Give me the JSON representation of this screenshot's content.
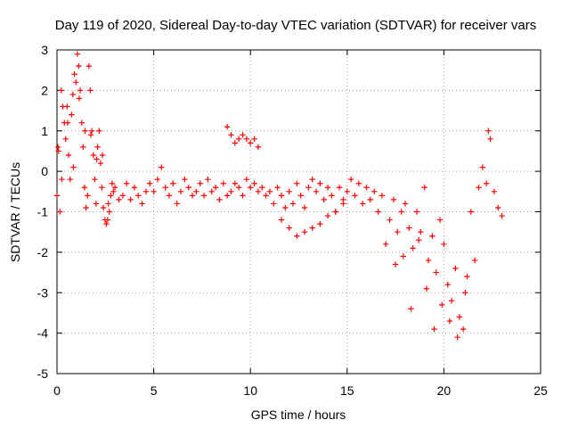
{
  "chart_data": {
    "type": "scatter",
    "title": "Day 119 of 2020, Sidereal Day-to-day VTEC variation (SDTVAR) for receiver vars",
    "xlabel": "GPS time / hours",
    "ylabel": "SDTVAR / TECUs",
    "xlim": [
      0,
      25
    ],
    "ylim": [
      -5,
      3
    ],
    "xticks": [
      0,
      5,
      10,
      15,
      20,
      25
    ],
    "yticks": [
      -5,
      -4,
      -3,
      -2,
      -1,
      0,
      1,
      2,
      3
    ],
    "grid": true,
    "marker": "+",
    "color": "#ff0000",
    "series": [
      {
        "name": "vars",
        "x": [
          0.0,
          0.08,
          0.15,
          0.22,
          0.3,
          0.38,
          0.45,
          0.52,
          0.6,
          0.68,
          0.75,
          0.82,
          0.9,
          0.98,
          1.05,
          1.12,
          1.2,
          1.28,
          1.35,
          1.42,
          1.5,
          1.58,
          1.65,
          1.72,
          1.8,
          1.88,
          1.95,
          2.02,
          2.1,
          2.18,
          2.25,
          2.32,
          2.4,
          2.48,
          2.55,
          2.62,
          2.7,
          2.78,
          2.85,
          2.92,
          3.0,
          3.2,
          3.4,
          3.6,
          3.8,
          4.0,
          4.2,
          4.4,
          4.6,
          4.8,
          5.0,
          5.2,
          5.4,
          5.6,
          5.8,
          6.0,
          6.2,
          6.4,
          6.6,
          6.8,
          7.0,
          7.2,
          7.4,
          7.6,
          7.8,
          8.0,
          8.2,
          8.4,
          8.6,
          8.8,
          9.0,
          9.2,
          9.4,
          9.6,
          9.8,
          10.0,
          10.2,
          10.4,
          10.6,
          10.8,
          11.0,
          11.2,
          11.4,
          11.6,
          11.8,
          12.0,
          12.2,
          12.4,
          12.6,
          12.8,
          13.0,
          13.2,
          13.4,
          13.6,
          13.8,
          14.0,
          14.2,
          14.4,
          14.6,
          14.8,
          15.0,
          15.2,
          15.4,
          15.6,
          15.8,
          16.0,
          16.2,
          16.4,
          16.6,
          16.8,
          17.0,
          17.2,
          17.4,
          17.6,
          17.8,
          18.0,
          18.2,
          18.4,
          18.6,
          18.8,
          19.0,
          19.2,
          19.4,
          19.6,
          19.8,
          20.0,
          20.2,
          20.4,
          20.6,
          20.8,
          21.0,
          21.2,
          21.4,
          21.6,
          21.8,
          22.0,
          22.2,
          22.4,
          22.6,
          22.8,
          23.0,
          0.05,
          0.25,
          0.55,
          0.85,
          1.15,
          1.45,
          1.75,
          2.05,
          2.35,
          2.65,
          8.8,
          9.0,
          9.2,
          9.4,
          9.6,
          9.8,
          10.0,
          10.2,
          10.4,
          11.6,
          12.0,
          12.4,
          12.8,
          13.2,
          13.6,
          14.0,
          14.4,
          14.8,
          17.5,
          17.9,
          18.3,
          18.7,
          19.1,
          19.5,
          19.9,
          20.3,
          20.7,
          21.1,
          22.3
        ],
        "y": [
          -0.6,
          0.5,
          -1.0,
          2.0,
          1.6,
          1.2,
          0.8,
          1.6,
          0.4,
          -0.2,
          1.4,
          1.9,
          2.4,
          2.2,
          2.9,
          2.6,
          2.0,
          1.2,
          0.6,
          -0.4,
          -0.9,
          -0.6,
          2.6,
          2.0,
          1.0,
          0.4,
          -0.2,
          -0.8,
          0.6,
          1.0,
          0.2,
          -0.4,
          -0.9,
          -1.2,
          -1.3,
          -1.2,
          -1.0,
          -0.6,
          -0.3,
          -0.5,
          -0.4,
          -0.7,
          -0.6,
          -0.3,
          -0.7,
          -0.4,
          -0.6,
          -0.8,
          -0.5,
          -0.3,
          -0.5,
          -0.2,
          0.1,
          -0.4,
          -0.6,
          -0.3,
          -0.8,
          -0.5,
          -0.2,
          -0.4,
          -0.6,
          -0.5,
          -0.3,
          -0.6,
          -0.2,
          -0.5,
          -0.4,
          -0.7,
          -0.3,
          -0.6,
          -0.5,
          -0.3,
          -0.4,
          -0.6,
          -0.2,
          -0.4,
          -0.3,
          -0.5,
          -0.4,
          -0.6,
          -0.5,
          -0.8,
          -0.4,
          -0.6,
          -0.9,
          -0.5,
          -0.8,
          -0.3,
          -0.6,
          -0.9,
          -0.4,
          -0.2,
          -0.5,
          -0.3,
          -0.7,
          -0.4,
          -0.6,
          -1.0,
          -0.4,
          -0.8,
          -0.5,
          -0.2,
          -0.6,
          -0.3,
          -0.8,
          -0.4,
          -0.7,
          -0.5,
          -1.0,
          -0.6,
          -1.8,
          -1.2,
          -0.7,
          -1.5,
          -1.0,
          -0.8,
          -1.4,
          -1.9,
          -1.0,
          -1.5,
          -0.4,
          -2.2,
          -1.6,
          -2.5,
          -1.2,
          -1.8,
          -2.8,
          -3.2,
          -2.4,
          -3.6,
          -3.9,
          -2.6,
          -1.0,
          -2.2,
          -0.4,
          0.1,
          -0.3,
          0.8,
          -0.5,
          -0.9,
          -1.1,
          0.6,
          -0.2,
          1.2,
          0.1,
          1.8,
          1.0,
          0.9,
          0.3,
          0.4,
          -0.8,
          1.1,
          0.9,
          0.7,
          0.8,
          0.9,
          0.8,
          0.7,
          0.8,
          0.6,
          -1.2,
          -1.4,
          -1.6,
          -1.5,
          -1.4,
          -1.3,
          -1.1,
          -1.0,
          -0.7,
          -2.3,
          -2.1,
          -3.4,
          -1.7,
          -2.9,
          -3.9,
          -3.3,
          -3.7,
          -4.1,
          -3.0,
          1.0
        ]
      }
    ]
  }
}
